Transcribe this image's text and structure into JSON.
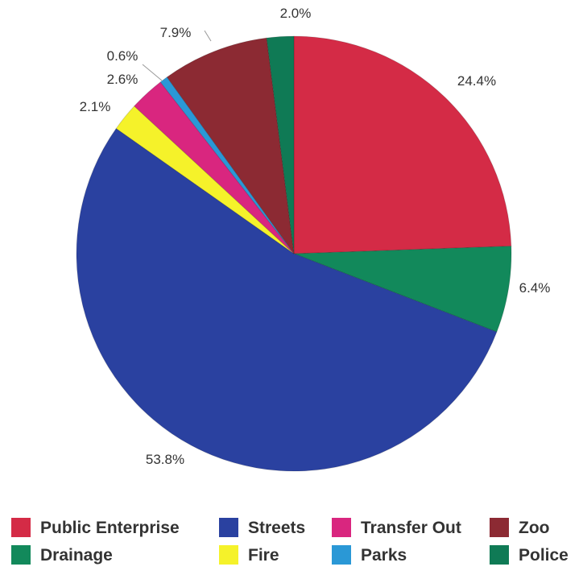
{
  "chart_data": {
    "type": "pie",
    "title": "",
    "legend_position": "bottom",
    "start_angle": "12 o'clock",
    "direction": "clockwise",
    "slices": [
      {
        "name": "Public Enterprise",
        "value": 24.4,
        "label": "24.4%",
        "color": "#d42b46"
      },
      {
        "name": "Drainage",
        "value": 6.4,
        "label": "6.4%",
        "color": "#12895b"
      },
      {
        "name": "Streets",
        "value": 53.8,
        "label": "53.8%",
        "color": "#2a41a0"
      },
      {
        "name": "Fire",
        "value": 2.1,
        "label": "2.1%",
        "color": "#f5f22a"
      },
      {
        "name": "Transfer Out",
        "value": 2.6,
        "label": "2.6%",
        "color": "#d9267f"
      },
      {
        "name": "Parks",
        "value": 0.6,
        "label": "0.6%",
        "color": "#2a98d6"
      },
      {
        "name": "Zoo",
        "value": 7.9,
        "label": "7.9%",
        "color": "#8c2a33"
      },
      {
        "name": "Police",
        "value": 2.0,
        "label": "2.0%",
        "color": "#0f7a55"
      }
    ],
    "legend": [
      {
        "name": "Public Enterprise",
        "color": "#d42b46"
      },
      {
        "name": "Streets",
        "color": "#2a41a0"
      },
      {
        "name": "Transfer Out",
        "color": "#d9267f"
      },
      {
        "name": "Zoo",
        "color": "#8c2a33"
      },
      {
        "name": "Drainage",
        "color": "#12895b"
      },
      {
        "name": "Fire",
        "color": "#f5f22a"
      },
      {
        "name": "Parks",
        "color": "#2a98d6"
      },
      {
        "name": "Police",
        "color": "#0f7a55"
      }
    ]
  }
}
